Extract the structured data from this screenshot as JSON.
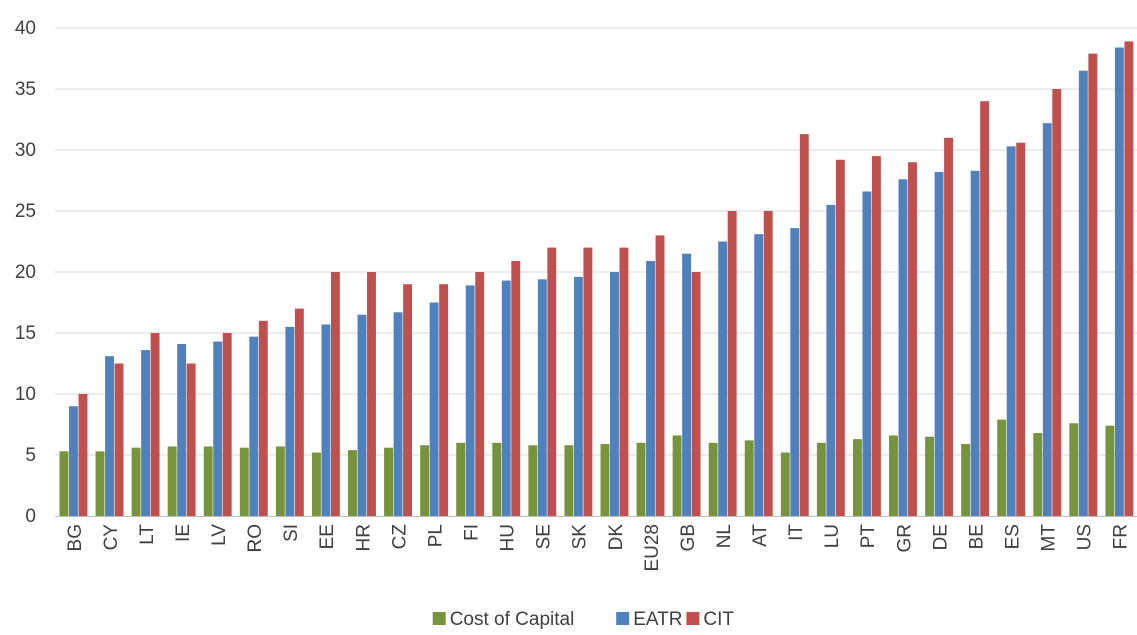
{
  "chart_data": {
    "type": "bar",
    "categories": [
      "BG",
      "CY",
      "LT",
      "IE",
      "LV",
      "RO",
      "SI",
      "EE",
      "HR",
      "CZ",
      "PL",
      "FI",
      "HU",
      "SE",
      "SK",
      "DK",
      "EU28",
      "GB",
      "NL",
      "AT",
      "IT",
      "LU",
      "PT",
      "GR",
      "DE",
      "BE",
      "ES",
      "MT",
      "US",
      "FR"
    ],
    "series": [
      {
        "name": "Cost of Capital",
        "color": "#77933c",
        "values": [
          5.3,
          5.3,
          5.6,
          5.7,
          5.7,
          5.6,
          5.7,
          5.2,
          5.4,
          5.6,
          5.8,
          6.0,
          6.0,
          5.8,
          5.8,
          5.9,
          6.0,
          6.6,
          6.0,
          6.2,
          5.2,
          6.0,
          6.3,
          6.6,
          6.5,
          5.9,
          7.9,
          6.8,
          7.6,
          7.4
        ]
      },
      {
        "name": "EATR",
        "color": "#4f81bd",
        "values": [
          9.0,
          13.1,
          13.6,
          14.1,
          14.3,
          14.7,
          15.5,
          15.7,
          16.5,
          16.7,
          17.5,
          18.9,
          19.3,
          19.4,
          19.6,
          20.0,
          20.9,
          21.5,
          22.5,
          23.1,
          23.6,
          25.5,
          26.6,
          27.6,
          28.2,
          28.3,
          30.3,
          32.2,
          36.5,
          38.4
        ]
      },
      {
        "name": "CIT",
        "color": "#c0504d",
        "values": [
          10.0,
          12.5,
          15.0,
          12.5,
          15.0,
          16.0,
          17.0,
          20.0,
          20.0,
          19.0,
          19.0,
          20.0,
          20.9,
          22.0,
          22.0,
          22.0,
          23.0,
          20.0,
          25.0,
          25.0,
          31.3,
          29.2,
          29.5,
          29.0,
          31.0,
          34.0,
          30.6,
          35.0,
          37.9,
          38.9
        ]
      }
    ],
    "title": "",
    "xlabel": "",
    "ylabel": "",
    "ylim": [
      0,
      40
    ],
    "yticks": [
      "0",
      "5",
      "10",
      "15",
      "20",
      "25",
      "30",
      "35",
      "40"
    ],
    "grid": true,
    "legend_position": "bottom-center",
    "gridline_color": "#d9d9d9",
    "axis_line_color": "#bfbfbf"
  }
}
